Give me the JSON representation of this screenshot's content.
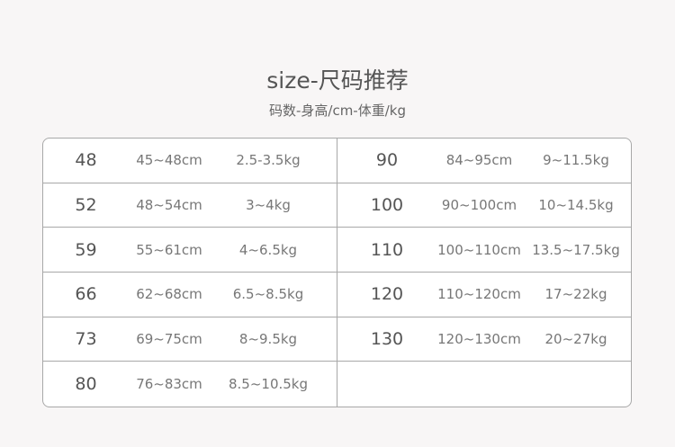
{
  "title": "size-尺码推荐",
  "subtitle": "码数-身高/cm-体重/kg",
  "left_rows": [
    {
      "size": "48",
      "height": "45~48cm",
      "weight": "2.5-3.5kg"
    },
    {
      "size": "52",
      "height": "48~54cm",
      "weight": "3~4kg"
    },
    {
      "size": "59",
      "height": "55~61cm",
      "weight": "4~6.5kg"
    },
    {
      "size": "66",
      "height": "62~68cm",
      "weight": "6.5~8.5kg"
    },
    {
      "size": "73",
      "height": "69~75cm",
      "weight": "8~9.5kg"
    },
    {
      "size": "80",
      "height": "76~83cm",
      "weight": "8.5~10.5kg"
    }
  ],
  "right_rows": [
    {
      "size": "90",
      "height": "84~95cm",
      "weight": "9~11.5kg"
    },
    {
      "size": "100",
      "height": "90~100cm",
      "weight": "10~14.5kg"
    },
    {
      "size": "110",
      "height": "100~110cm",
      "weight": "13.5~17.5kg"
    },
    {
      "size": "120",
      "height": "110~120cm",
      "weight": "17~22kg"
    },
    {
      "size": "130",
      "height": "120~130cm",
      "weight": "20~27kg"
    },
    {
      "size": "",
      "height": "",
      "weight": ""
    }
  ]
}
